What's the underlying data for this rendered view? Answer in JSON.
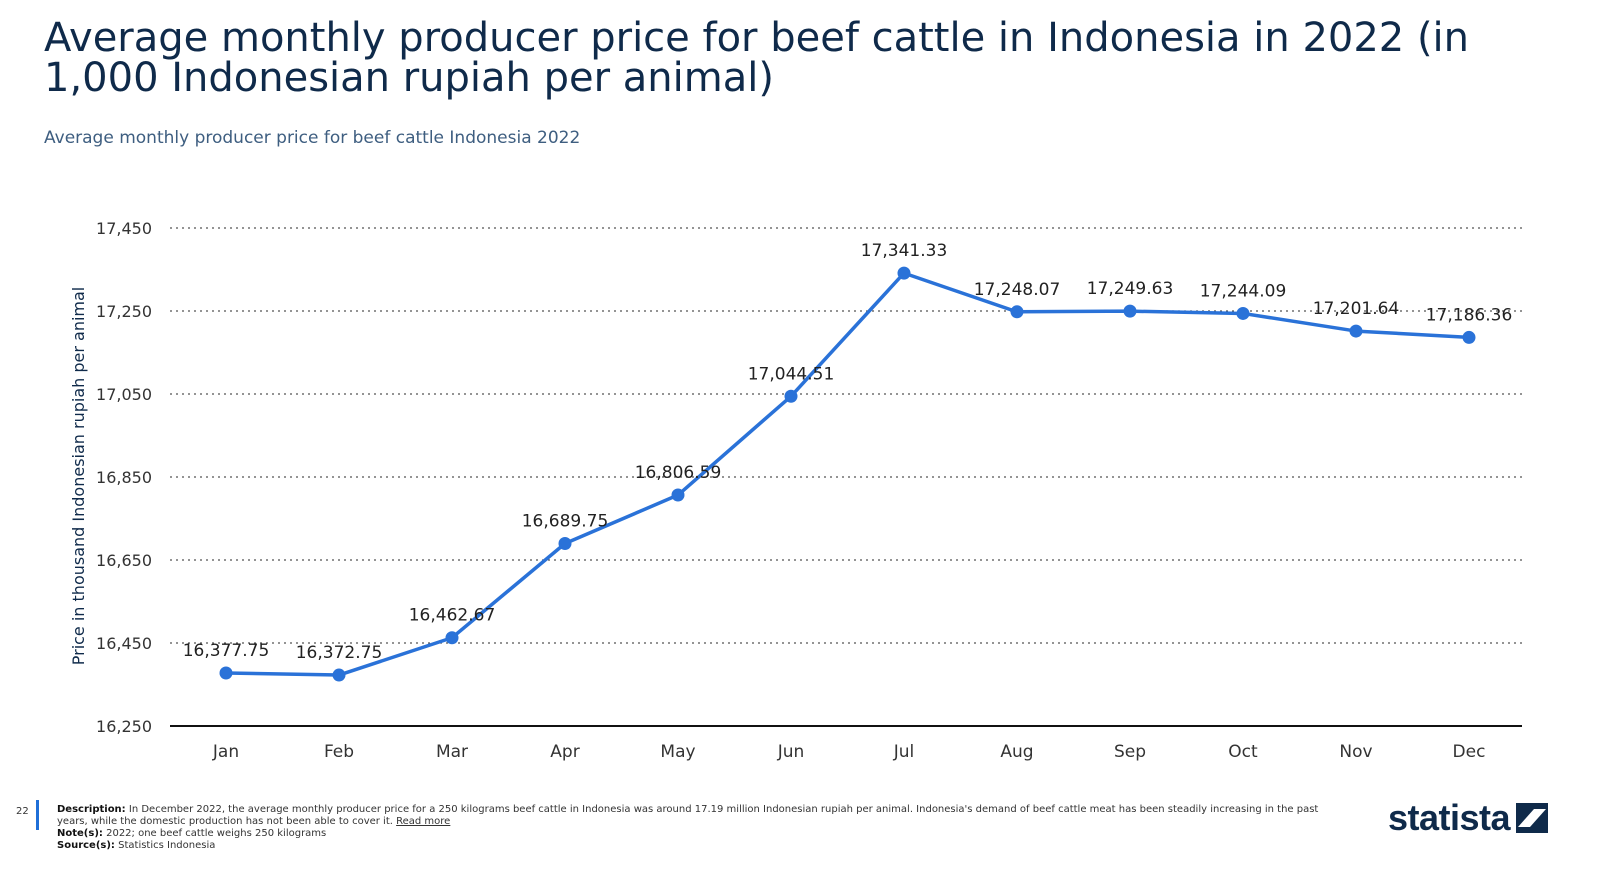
{
  "header": {
    "title": "Average monthly producer price for beef cattle in Indonesia in 2022 (in 1,000 Indonesian rupiah per animal)",
    "subtitle": "Average monthly producer price for beef cattle Indonesia 2022"
  },
  "chart_data": {
    "type": "line",
    "categories": [
      "Jan",
      "Feb",
      "Mar",
      "Apr",
      "May",
      "Jun",
      "Jul",
      "Aug",
      "Sep",
      "Oct",
      "Nov",
      "Dec"
    ],
    "values": [
      16377.75,
      16372.75,
      16462.67,
      16689.75,
      16806.59,
      17044.51,
      17341.33,
      17248.07,
      17249.63,
      17244.09,
      17201.64,
      17186.36
    ],
    "value_labels": [
      "16,377.75",
      "16,372.75",
      "16,462.67",
      "16,689.75",
      "16,806.59",
      "17,044.51",
      "17,341.33",
      "17,248.07",
      "17,249.63",
      "17,244.09",
      "17,201.64",
      "17,186.36"
    ],
    "ylabel": "Price in thousand Indonesian rupiah per animal",
    "xlabel": "",
    "ylim": [
      16250,
      17450
    ],
    "yticks": [
      16250,
      16450,
      16650,
      16850,
      17050,
      17250,
      17450
    ],
    "ytick_labels": [
      "16,250",
      "16,450",
      "16,650",
      "16,850",
      "17,050",
      "17,250",
      "17,450"
    ],
    "grid": true,
    "line_color": "#2a72d8"
  },
  "footer": {
    "page_number": "22",
    "description_label": "Description:",
    "description": "In December 2022, the average monthly producer price for a 250 kilograms beef cattle in Indonesia was around 17.19 million Indonesian rupiah per animal. Indonesia's demand of beef cattle meat has been steadily increasing in the past years, while the domestic production has not been able to cover it.",
    "read_more": "Read more",
    "note_label": "Note(s):",
    "note": "2022; one beef cattle weighs 250 kilograms",
    "source_label": "Source(s):",
    "source": "Statistics Indonesia",
    "logo_text": "statista",
    "logo_icon": "statista-logo-icon"
  }
}
